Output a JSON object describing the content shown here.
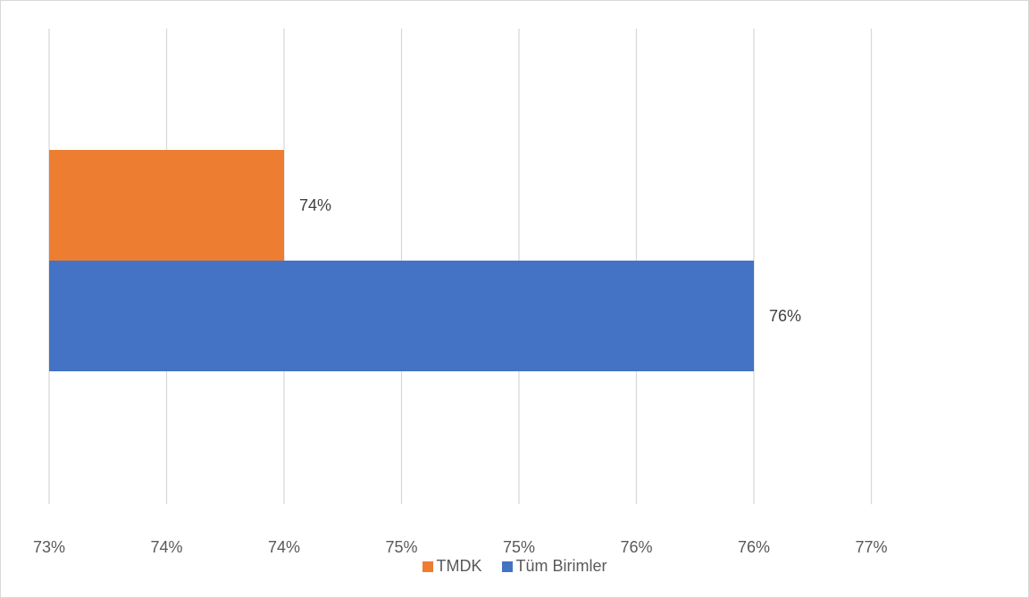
{
  "chart_data": {
    "type": "bar",
    "orientation": "horizontal",
    "title": "",
    "xlabel": "",
    "ylabel": "",
    "xlim": [
      73.0,
      77.0
    ],
    "x_tick_values": [
      73.0,
      73.5,
      74.0,
      74.5,
      75.0,
      75.5,
      76.0,
      76.5
    ],
    "x_tick_labels": [
      "73%",
      "74%",
      "74%",
      "75%",
      "75%",
      "76%",
      "76%",
      "77%"
    ],
    "grid": true,
    "legend_position": "bottom",
    "series": [
      {
        "name": "TMDK",
        "value": 74.0,
        "label": "74%",
        "color": "#ED7D31"
      },
      {
        "name": "Tüm Birimler",
        "value": 76.0,
        "label": "76%",
        "color": "#4472C4"
      }
    ]
  }
}
